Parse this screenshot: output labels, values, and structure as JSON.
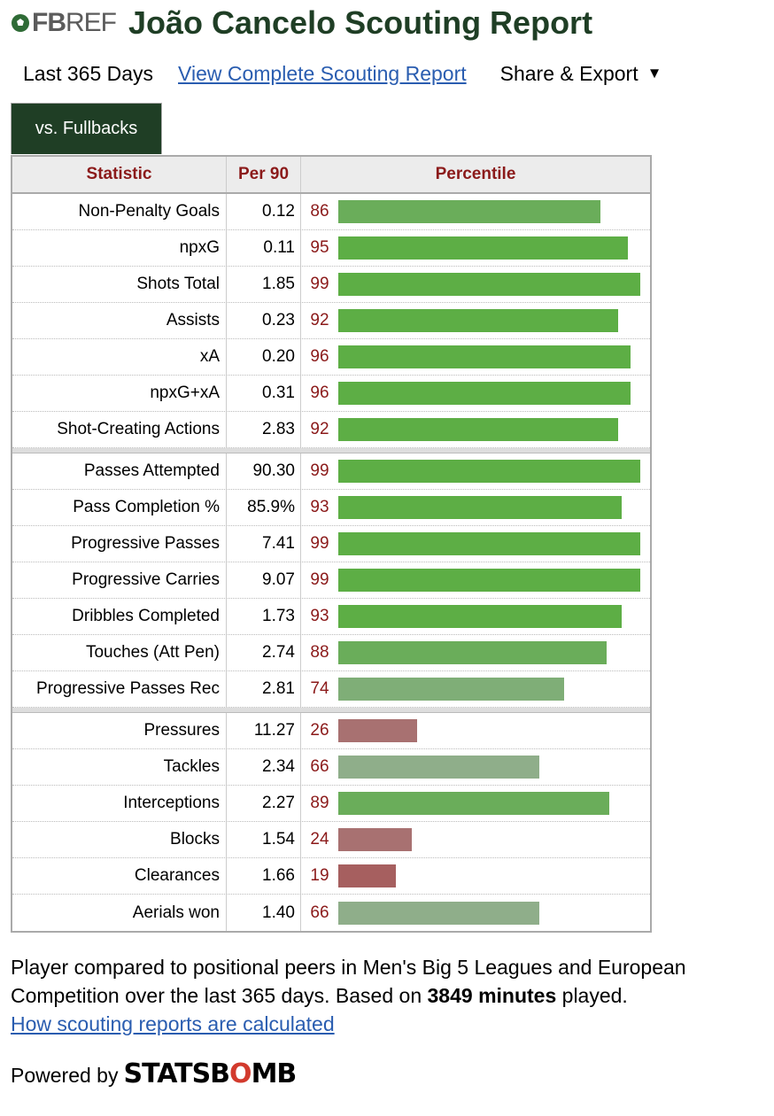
{
  "header": {
    "logo_fb": "FB",
    "logo_ref": "REF",
    "title": "João Cancelo Scouting Report"
  },
  "subnav": {
    "range": "Last 365 Days",
    "complete_link": "View Complete Scouting Report",
    "share": "Share & Export",
    "share_arrow": "▼"
  },
  "tab": {
    "label": "vs. Fullbacks"
  },
  "table": {
    "columns": [
      "Statistic",
      "Per 90",
      "Percentile"
    ],
    "groups": [
      [
        {
          "stat": "Non-Penalty Goals",
          "per90": "0.12",
          "pct": "86"
        },
        {
          "stat": "npxG",
          "per90": "0.11",
          "pct": "95"
        },
        {
          "stat": "Shots Total",
          "per90": "1.85",
          "pct": "99"
        },
        {
          "stat": "Assists",
          "per90": "0.23",
          "pct": "92"
        },
        {
          "stat": "xA",
          "per90": "0.20",
          "pct": "96"
        },
        {
          "stat": "npxG+xA",
          "per90": "0.31",
          "pct": "96"
        },
        {
          "stat": "Shot-Creating Actions",
          "per90": "2.83",
          "pct": "92"
        }
      ],
      [
        {
          "stat": "Passes Attempted",
          "per90": "90.30",
          "pct": "99"
        },
        {
          "stat": "Pass Completion %",
          "per90": "85.9%",
          "pct": "93"
        },
        {
          "stat": "Progressive Passes",
          "per90": "7.41",
          "pct": "99"
        },
        {
          "stat": "Progressive Carries",
          "per90": "9.07",
          "pct": "99"
        },
        {
          "stat": "Dribbles Completed",
          "per90": "1.73",
          "pct": "93"
        },
        {
          "stat": "Touches (Att Pen)",
          "per90": "2.74",
          "pct": "88"
        },
        {
          "stat": "Progressive Passes Rec",
          "per90": "2.81",
          "pct": "74"
        }
      ],
      [
        {
          "stat": "Pressures",
          "per90": "11.27",
          "pct": "26"
        },
        {
          "stat": "Tackles",
          "per90": "2.34",
          "pct": "66"
        },
        {
          "stat": "Interceptions",
          "per90": "2.27",
          "pct": "89"
        },
        {
          "stat": "Blocks",
          "per90": "1.54",
          "pct": "24"
        },
        {
          "stat": "Clearances",
          "per90": "1.66",
          "pct": "19"
        },
        {
          "stat": "Aerials won",
          "per90": "1.40",
          "pct": "66"
        }
      ]
    ]
  },
  "colors": {
    "title": "#1f3e25",
    "tab_bg": "#1f3e25",
    "header_text": "#8b1a1a",
    "link": "#2a5db0",
    "bar_top": "#5dae45",
    "bar_high": "#6aad5a",
    "bar_mid": "#7fae77",
    "bar_avg": "#8fae8a",
    "bar_low": "#a87171",
    "bar_very_low": "#a65f5f"
  },
  "footer": {
    "text_before": "Player compared to positional peers in Men's Big 5 Leagues and European Competition over the last 365 days. Based on ",
    "minutes": "3849 minutes",
    "text_after": " played.",
    "calc_link": "How scouting reports are calculated",
    "powered_by": "Powered by",
    "statsbomb_black1": "STATSB",
    "statsbomb_red": "O",
    "statsbomb_black2": "MB"
  }
}
